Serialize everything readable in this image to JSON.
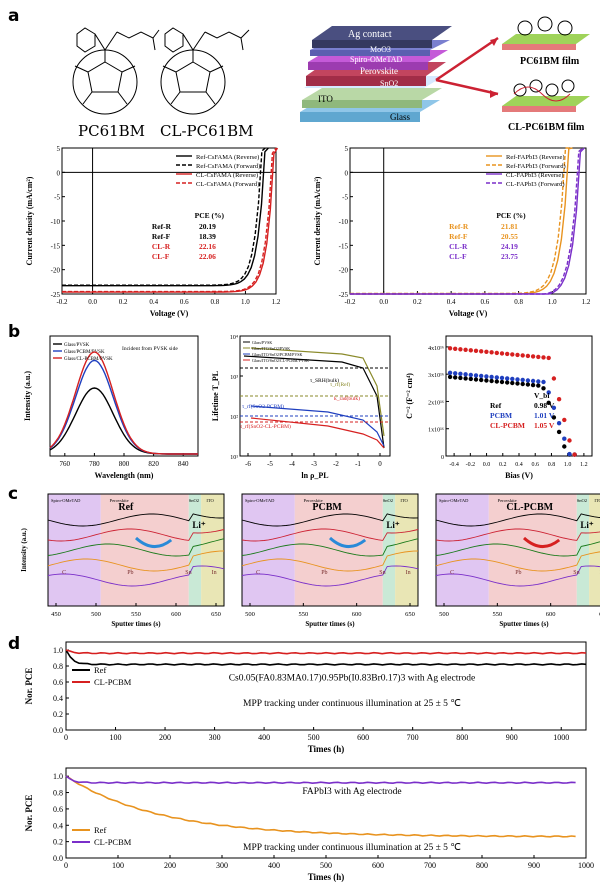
{
  "panel_labels": {
    "a": "a",
    "b": "b",
    "c": "c",
    "d": "d"
  },
  "panel_a": {
    "molecules": [
      "PC61BM",
      "CL-PC61BM"
    ],
    "stack_layers": [
      "Ag contact",
      "MoO3",
      "Spiro-OMeTAD",
      "Perovskite",
      "SnO2",
      "ITO",
      "Glass"
    ],
    "film_labels": [
      "PC61BM film",
      "CL-PC61BM film"
    ]
  },
  "chart_data": [
    {
      "id": "a1",
      "type": "line",
      "xlabel": "Voltage (V)",
      "ylabel": "Current density (mA/cm²)",
      "xlim": [
        -0.2,
        1.2
      ],
      "ylim": [
        -25,
        5
      ],
      "xticks": [
        "-0.2",
        "0.0",
        "0.2",
        "0.4",
        "0.6",
        "0.8",
        "1.0",
        "1.2"
      ],
      "yticks": [
        "5",
        "0",
        "-5",
        "-10",
        "-15",
        "-20",
        "-25"
      ],
      "series": [
        {
          "name": "Ref-CsFAMA (Reverse)",
          "color": "#000000",
          "dash": false,
          "jsc": -23.3,
          "voc": 1.12
        },
        {
          "name": "Ref-CsFAMA (Forward)",
          "color": "#000000",
          "dash": true,
          "jsc": -23.2,
          "voc": 1.1
        },
        {
          "name": "CL-CsFAMA (Reverse)",
          "color": "#d62020",
          "dash": false,
          "jsc": -24.6,
          "voc": 1.18
        },
        {
          "name": "CL-CsFAMA (Forward)",
          "color": "#d62020",
          "dash": true,
          "jsc": -24.5,
          "voc": 1.17
        }
      ],
      "table": {
        "header": "PCE (%)",
        "rows": [
          [
            "Ref-R",
            "20.19",
            "#000000"
          ],
          [
            "Ref-F",
            "18.39",
            "#000000"
          ],
          [
            "CL-R",
            "22.16",
            "#d62020"
          ],
          [
            "CL-F",
            "22.06",
            "#d62020"
          ]
        ]
      }
    },
    {
      "id": "a2",
      "type": "line",
      "xlabel": "Voltage (V)",
      "ylabel": "Current density (mA/cm²)",
      "xlim": [
        -0.2,
        1.2
      ],
      "ylim": [
        -25,
        5
      ],
      "xticks": [
        "-0.2",
        "0.0",
        "0.2",
        "0.4",
        "0.6",
        "0.8",
        "1.0",
        "1.2"
      ],
      "yticks": [
        "5",
        "0",
        "-5",
        "-10",
        "-15",
        "-20",
        "-25"
      ],
      "series": [
        {
          "name": "Ref-FAPbI3 (Reverse)",
          "color": "#e8931f",
          "dash": false,
          "jsc": -25.0,
          "voc": 1.09
        },
        {
          "name": "Ref-FAPbI3 (Forward)",
          "color": "#e8931f",
          "dash": true,
          "jsc": -24.9,
          "voc": 1.07
        },
        {
          "name": "CL-FAPbI3 (Reverse)",
          "color": "#7a2fc9",
          "dash": false,
          "jsc": -25.5,
          "voc": 1.16
        },
        {
          "name": "CL-FAPbI3 (Forward)",
          "color": "#7a2fc9",
          "dash": true,
          "jsc": -25.4,
          "voc": 1.15
        }
      ],
      "table": {
        "header": "PCE (%)",
        "rows": [
          [
            "Ref-R",
            "21.81",
            "#e8931f"
          ],
          [
            "Ref-F",
            "20.55",
            "#e8931f"
          ],
          [
            "CL-R",
            "24.19",
            "#7a2fc9"
          ],
          [
            "CL-F",
            "23.75",
            "#7a2fc9"
          ]
        ]
      }
    },
    {
      "id": "b1",
      "type": "line",
      "xlabel": "Wavelength (nm)",
      "ylabel": "Intensity (a.u.)",
      "xlim": [
        750,
        850
      ],
      "xticks": [
        "760",
        "780",
        "800",
        "820",
        "840"
      ],
      "annotation": "Incident from PVSK side",
      "series": [
        {
          "name": "Glass/PVSK",
          "color": "#000000",
          "peak": 0.55
        },
        {
          "name": "Glass/PCBM/PVSK",
          "color": "#1f3fbf",
          "peak": 0.78
        },
        {
          "name": "Glass/CL-PCBM/PVSK",
          "color": "#d62020",
          "peak": 0.85
        }
      ]
    },
    {
      "id": "b2",
      "type": "line",
      "xlabel": "ln ρ_PL",
      "ylabel": "Lifetime T_PL",
      "xlim": [
        -6.5,
        0.5
      ],
      "xticks": [
        "-6",
        "-5",
        "-4",
        "-3",
        "-2",
        "-1",
        "0"
      ],
      "yticks": [
        "10⁴",
        "10³",
        "10²",
        "10¹"
      ],
      "annotations": [
        "τ_SRH(bulk)",
        "τ_rf(Ref)",
        "k_rad(bulk)",
        "τ_rf(SnO2-PCBM)",
        "τ_rf(SnO2-CL-PCBM)"
      ],
      "legend": [
        "Glass/PVSK",
        "Glass/ITO/SnO2/PVSK",
        "Glass/ITO/SnO2/PCBM/PVSK",
        "Glass/ITO/SnO2/CL-PCBM/PVSK"
      ]
    },
    {
      "id": "b3",
      "type": "scatter",
      "xlabel": "Bias (V)",
      "ylabel": "C⁻² (F⁻² cm⁴)",
      "xlim": [
        -0.5,
        1.3
      ],
      "xticks": [
        "-0.4",
        "-0.2",
        "0.0",
        "0.2",
        "0.4",
        "0.6",
        "0.8",
        "1.0",
        "1.2"
      ],
      "yticks": [
        "4x10¹⁶",
        "3x10¹⁶",
        "2x10¹⁶",
        "1x10¹⁶",
        "0"
      ],
      "header": "V_bi",
      "series": [
        {
          "name": "Ref",
          "value": "0.98 V",
          "color": "#000000",
          "level": 2.9,
          "vbi": 0.98
        },
        {
          "name": "PCBM",
          "value": "1.01 V",
          "color": "#1f3fbf",
          "level": 3.05,
          "vbi": 1.01
        },
        {
          "name": "CL-PCBM",
          "value": "1.05 V",
          "color": "#d62020",
          "level": 3.95,
          "vbi": 1.05
        }
      ]
    },
    {
      "id": "c",
      "type": "line",
      "xlabel": "Sputter times (s)",
      "ylabel": "Intensity (a.u.)",
      "panels": [
        {
          "title": "Ref",
          "xticks": [
            "450",
            "500",
            "550",
            "600",
            "650"
          ]
        },
        {
          "title": "PCBM",
          "xticks": [
            "500",
            "550",
            "600",
            "650"
          ]
        },
        {
          "title": "CL-PCBM",
          "xticks": [
            "500",
            "550",
            "600",
            "650"
          ]
        }
      ],
      "labels": [
        "Spiro-OMeTAD",
        "Perovskite",
        "SnO2",
        "ITO",
        "Li⁺",
        "C",
        "Pb",
        "Sn",
        "In"
      ]
    },
    {
      "id": "d1",
      "type": "line",
      "xlabel": "Times (h)",
      "ylabel": "Nor. PCE",
      "xlim": [
        0,
        1050
      ],
      "ylim": [
        0,
        1.1
      ],
      "xticks": [
        "0",
        "100",
        "200",
        "300",
        "400",
        "500",
        "600",
        "700",
        "800",
        "900",
        "1000"
      ],
      "yticks": [
        "1.0",
        "0.8",
        "0.6",
        "0.4",
        "0.2",
        "0.0"
      ],
      "title": "Cs0.05(FA0.83MA0.17)0.95Pb(I0.83Br0.17)3 with Ag electrode",
      "note": "MPP tracking under continuous illumination at 25 ± 5 ℃",
      "series": [
        {
          "name": "Ref",
          "color": "#000000",
          "end": 1050,
          "start": 1.0,
          "plateau": 0.82
        },
        {
          "name": "CL-PCBM",
          "color": "#d62020",
          "end": 1050,
          "start": 1.0,
          "plateau": 0.96
        }
      ]
    },
    {
      "id": "d2",
      "type": "line",
      "xlabel": "Times (h)",
      "ylabel": "Nor. PCE",
      "xlim": [
        0,
        1000
      ],
      "ylim": [
        0,
        1.1
      ],
      "xticks": [
        "0",
        "100",
        "200",
        "300",
        "400",
        "500",
        "600",
        "700",
        "800",
        "900",
        "1000"
      ],
      "yticks": [
        "1.0",
        "0.8",
        "0.6",
        "0.4",
        "0.2",
        "0.0"
      ],
      "title": "FAPbI3 with Ag electrode",
      "note": "MPP tracking under continuous illumination at 25 ± 5 ℃",
      "series": [
        {
          "name": "Ref",
          "color": "#e8931f",
          "end": 980,
          "start": 1.0,
          "plateau": 0.26
        },
        {
          "name": "CL-PCBM",
          "color": "#7a2fc9",
          "end": 980,
          "start": 1.0,
          "plateau": 0.92
        }
      ]
    }
  ]
}
